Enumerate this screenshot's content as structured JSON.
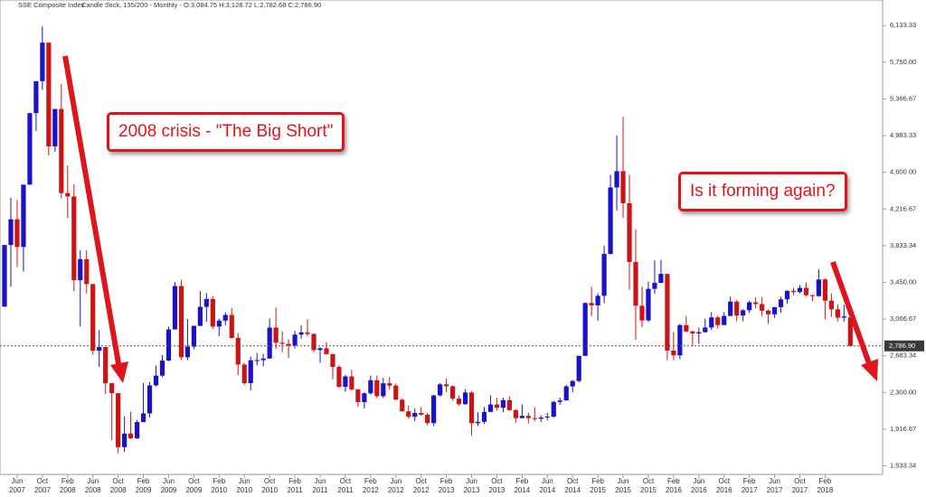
{
  "chart_data": {
    "type": "candlestick",
    "title": "SSE Composite Index",
    "subtitle": "Candle Stick, 135/200 - Monthly - O:3,084.75 H:3,128.72 L:2,782.68 C:2,786.90",
    "up_color": "#1a12c8",
    "down_color": "#cc1414",
    "open": [
      3196,
      3841,
      4109,
      3820,
      4471,
      5218,
      5552,
      5955,
      4871,
      5262,
      4383,
      4348,
      3473,
      3693,
      3433,
      2736,
      2775,
      2397,
      2293,
      1729,
      1871,
      1821,
      1991,
      2082,
      2374,
      2477,
      2633,
      2959,
      3412,
      2668,
      2779,
      2996,
      3195,
      3277,
      2989,
      3051,
      3110,
      2870,
      2592,
      2398,
      2637,
      2638,
      2655,
      2978,
      2820,
      2808,
      2791,
      2905,
      2928,
      2911,
      2743,
      2762,
      2701,
      2567,
      2359,
      2468,
      2333,
      2199,
      2292,
      2428,
      2262,
      2396,
      2372,
      2225,
      2103,
      2047,
      2086,
      2068,
      1980,
      2269,
      2385,
      2365,
      2236,
      2178,
      2300,
      1979,
      1994,
      2098,
      2175,
      2141,
      2220,
      2116,
      2033,
      2056,
      2033,
      2026,
      2039,
      2048,
      2202,
      2217,
      2364,
      2420,
      2683,
      3235,
      3210,
      3310,
      3748,
      4442,
      4612,
      4277,
      3664,
      3206,
      3053,
      3383,
      3445,
      3539,
      2738,
      2688,
      3004,
      2938,
      2917,
      2930,
      2979,
      3085,
      3005,
      3100,
      3250,
      3104,
      3159,
      3242,
      3223,
      3155,
      3117,
      3192,
      3273,
      3361,
      3349,
      3393,
      3317,
      3307,
      3481,
      3259,
      3169,
      3082,
      3084.75
    ],
    "high": [
      3842,
      4335,
      4312,
      4471,
      5219,
      5552,
      6124,
      5955,
      5262,
      5522,
      4672,
      4473,
      3786,
      3786,
      3433,
      2953,
      2775,
      2402,
      2293,
      2052,
      2100,
      2013,
      2402,
      2408,
      2580,
      2688,
      2985,
      3454,
      3478,
      3068,
      3000,
      3361,
      3338,
      3306,
      3070,
      3139,
      3181,
      2922,
      2608,
      2677,
      2713,
      2705,
      3074,
      3186,
      2939,
      2856,
      2944,
      3001,
      3067,
      2918,
      2774,
      2826,
      2705,
      2584,
      2484,
      2536,
      2338,
      2301,
      2478,
      2478,
      2454,
      2461,
      2393,
      2236,
      2161,
      2133,
      2145,
      2085,
      2276,
      2398,
      2445,
      2374,
      2270,
      2334,
      2314,
      2092,
      2149,
      2270,
      2243,
      2245,
      2260,
      2125,
      2177,
      2090,
      2146,
      2061,
      2087,
      2213,
      2248,
      2380,
      2432,
      2683,
      3239,
      3406,
      3337,
      3835,
      4573,
      4986,
      5178,
      4574,
      4006,
      3407,
      3459,
      3679,
      3685,
      3539,
      2933,
      3019,
      3098,
      2947,
      2979,
      3070,
      3141,
      3103,
      3140,
      3301,
      3265,
      3173,
      3260,
      3295,
      3295,
      3167,
      3192,
      3301,
      3368,
      3392,
      3422,
      3451,
      3322,
      3587,
      3493,
      3333,
      3220,
      3219,
      3128.72
    ],
    "low": [
      3196,
      3404,
      3610,
      3563,
      4471,
      5032,
      5462,
      4778,
      4812,
      4330,
      4123,
      3358,
      2990,
      3333,
      2693,
      2566,
      2284,
      1802,
      1664,
      1679,
      1814,
      1814,
      1991,
      2037,
      2363,
      2462,
      2628,
      2959,
      2639,
      2639,
      2752,
      2996,
      3039,
      2963,
      2890,
      2999,
      2860,
      2481,
      2382,
      2320,
      2583,
      2574,
      2654,
      2754,
      2721,
      2661,
      2760,
      2863,
      2889,
      2723,
      2610,
      2694,
      2437,
      2349,
      2307,
      2319,
      2149,
      2132,
      2277,
      2242,
      2242,
      2331,
      2222,
      2100,
      2027,
      1999,
      2058,
      1959,
      1949,
      2260,
      2303,
      2215,
      2161,
      2173,
      1849,
      1951,
      1971,
      2093,
      2114,
      2093,
      2109,
      1984,
      2028,
      1974,
      1997,
      1991,
      2010,
      2037,
      2171,
      2217,
      2302,
      2405,
      2682,
      3095,
      3050,
      3234,
      3740,
      4199,
      4123,
      3373,
      2850,
      2983,
      3039,
      3328,
      3443,
      2639,
      2638,
      2649,
      2929,
      2781,
      2807,
      2927,
      2956,
      2969,
      3004,
      3096,
      3045,
      3044,
      3130,
      3181,
      3099,
      3016,
      3079,
      3133,
      3225,
      3317,
      3335,
      3300,
      3254,
      3300,
      3062,
      3091,
      3041,
      3041,
      2782.68
    ],
    "close": [
      3841,
      4109,
      3820,
      4471,
      5218,
      5552,
      5955,
      4871,
      5262,
      4383,
      4348,
      3473,
      3693,
      3433,
      2736,
      2775,
      2397,
      2293,
      1729,
      1871,
      1821,
      1991,
      2082,
      2374,
      2477,
      2633,
      2959,
      3412,
      2668,
      2779,
      2996,
      3195,
      3277,
      2989,
      3051,
      3110,
      2870,
      2592,
      2398,
      2637,
      2638,
      2655,
      2978,
      2820,
      2808,
      2791,
      2905,
      2928,
      2911,
      2743,
      2762,
      2701,
      2567,
      2359,
      2468,
      2333,
      2199,
      2292,
      2428,
      2262,
      2396,
      2372,
      2225,
      2103,
      2047,
      2086,
      2068,
      1980,
      2269,
      2385,
      2365,
      2236,
      2178,
      2300,
      1979,
      1994,
      2098,
      2175,
      2141,
      2220,
      2116,
      2033,
      2056,
      2033,
      2026,
      2039,
      2048,
      2202,
      2217,
      2364,
      2420,
      2683,
      3235,
      3210,
      3310,
      3748,
      4442,
      4612,
      4277,
      3664,
      3206,
      3053,
      3383,
      3445,
      3539,
      2738,
      2688,
      3004,
      2938,
      2917,
      2930,
      2979,
      3085,
      3005,
      3100,
      3250,
      3104,
      3159,
      3242,
      3223,
      3155,
      3117,
      3192,
      3273,
      3361,
      3349,
      3393,
      3317,
      3307,
      3481,
      3259,
      3169,
      3082,
      3095,
      2786.9
    ],
    "xticks": [
      {
        "value": 2,
        "label": "Jun 2007"
      },
      {
        "value": 6,
        "label": "Oct 2007"
      },
      {
        "value": 10,
        "label": "Feb 2008"
      },
      {
        "value": 14,
        "label": "Jun 2008"
      },
      {
        "value": 18,
        "label": "Oct 2008"
      },
      {
        "value": 22,
        "label": "Feb 2009"
      },
      {
        "value": 26,
        "label": "Jun 2009"
      },
      {
        "value": 30,
        "label": "Oct 2009"
      },
      {
        "value": 34,
        "label": "Feb 2010"
      },
      {
        "value": 38,
        "label": "Jun 2010"
      },
      {
        "value": 42,
        "label": "Oct 2010"
      },
      {
        "value": 46,
        "label": "Feb 2011"
      },
      {
        "value": 50,
        "label": "Jun 2011"
      },
      {
        "value": 54,
        "label": "Oct 2011"
      },
      {
        "value": 58,
        "label": "Feb 2012"
      },
      {
        "value": 62,
        "label": "Jun 2012"
      },
      {
        "value": 66,
        "label": "Oct 2012"
      },
      {
        "value": 70,
        "label": "Feb 2013"
      },
      {
        "value": 74,
        "label": "Jun 2013"
      },
      {
        "value": 78,
        "label": "Oct 2013"
      },
      {
        "value": 82,
        "label": "Feb 2014"
      },
      {
        "value": 86,
        "label": "Jun 2014"
      },
      {
        "value": 90,
        "label": "Oct 2014"
      },
      {
        "value": 94,
        "label": "Feb 2015"
      },
      {
        "value": 98,
        "label": "Jun 2015"
      },
      {
        "value": 102,
        "label": "Oct 2015"
      },
      {
        "value": 106,
        "label": "Feb 2016"
      },
      {
        "value": 110,
        "label": "Jun 2016"
      },
      {
        "value": 114,
        "label": "Oct 2016"
      },
      {
        "value": 118,
        "label": "Feb 2017"
      },
      {
        "value": 122,
        "label": "Jun 2017"
      },
      {
        "value": 126,
        "label": "Oct 2017"
      },
      {
        "value": 130,
        "label": "Feb 2018"
      }
    ],
    "ylim": [
      1350,
      6400
    ],
    "yticks": [
      {
        "value": 1533.34,
        "label": "1,533.34"
      },
      {
        "value": 1916.67,
        "label": "1,916.67"
      },
      {
        "value": 2300,
        "label": "2,300.00"
      },
      {
        "value": 2683.34,
        "label": "2,683.34"
      },
      {
        "value": 3066.67,
        "label": "3,066.67"
      },
      {
        "value": 3450,
        "label": "3,450.00"
      },
      {
        "value": 3833.34,
        "label": "3,833.34"
      },
      {
        "value": 4216.67,
        "label": "4,216.67"
      },
      {
        "value": 4600,
        "label": "4,600.00"
      },
      {
        "value": 4983.33,
        "label": "4,983.33"
      },
      {
        "value": 5366.67,
        "label": "5,366.67"
      },
      {
        "value": 5750,
        "label": "5,750.00"
      },
      {
        "value": 6133.33,
        "label": "6,133.33"
      }
    ],
    "last_price": {
      "value": 2786.9,
      "label": "2,786.90"
    },
    "annotations": [
      "2008 crisis - \"The Big Short\"",
      "Is it forming again?"
    ]
  }
}
